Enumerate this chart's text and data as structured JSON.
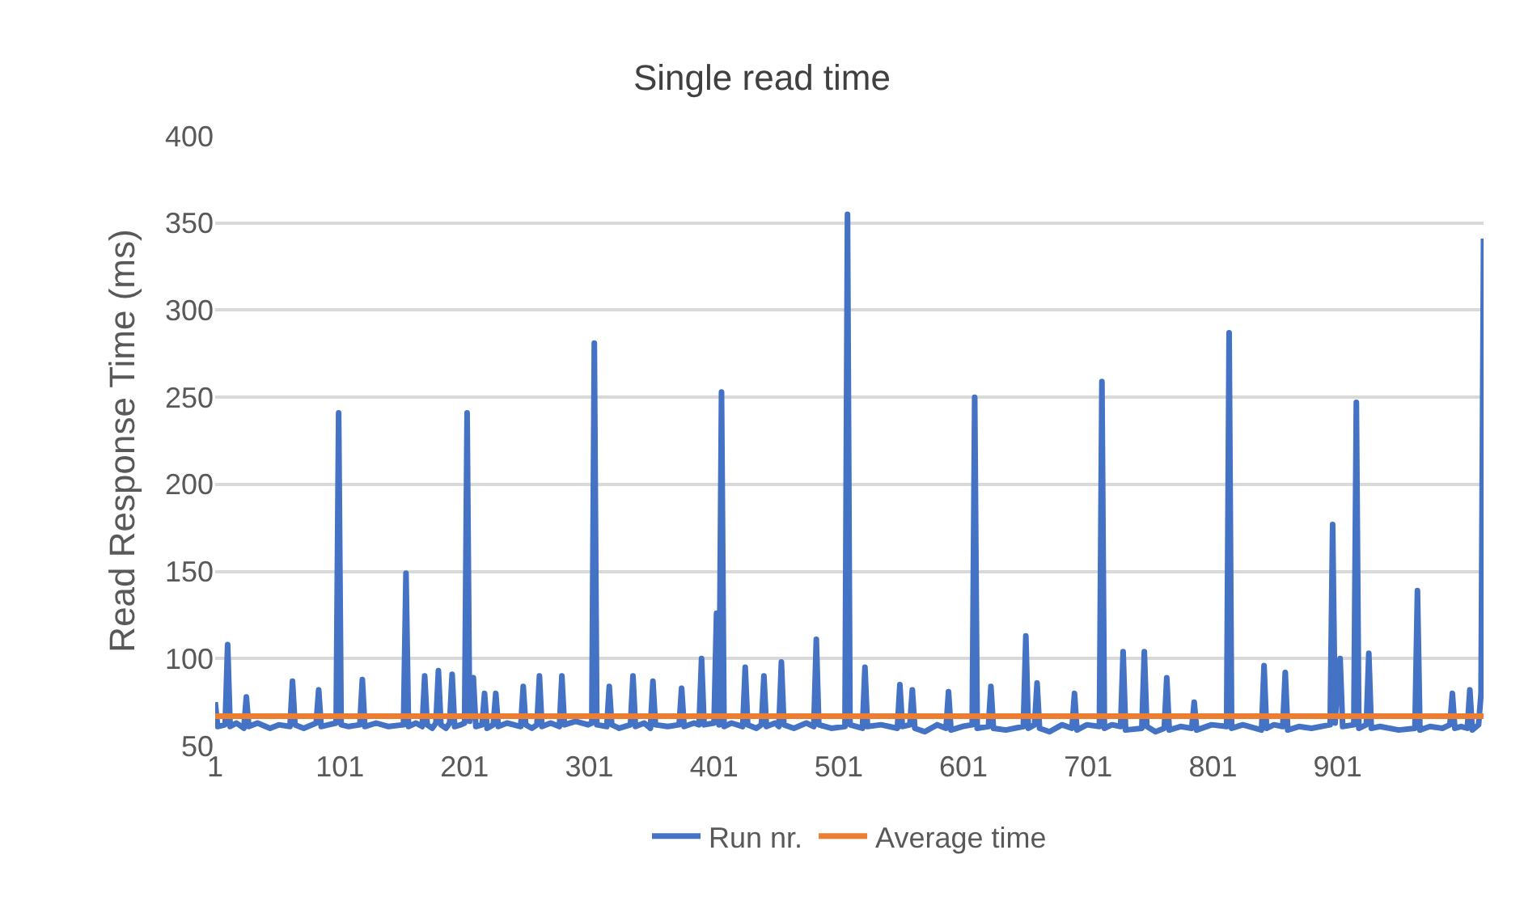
{
  "chart_data": {
    "type": "line",
    "title": "Single read time",
    "ylabel": "Read Response Time (ms)",
    "xlim": [
      1,
      1018
    ],
    "xticks": [
      1,
      101,
      201,
      301,
      401,
      501,
      601,
      701,
      801,
      901
    ],
    "ylim": [
      50,
      400
    ],
    "yticks": [
      50,
      100,
      150,
      200,
      250,
      300,
      350,
      400
    ],
    "grid": "y",
    "legend": "bottom",
    "marker": "none",
    "line_style": "solid",
    "series": [
      {
        "name": "Run nr.",
        "color": "#4472c4",
        "x": [
          1,
          3,
          9,
          11,
          13,
          18,
          24,
          26,
          28,
          35,
          45,
          52,
          61,
          63,
          65,
          72,
          82,
          84,
          86,
          92,
          98,
          100,
          102,
          108,
          117,
          119,
          121,
          130,
          140,
          152,
          154,
          156,
          162,
          167,
          169,
          171,
          175,
          178,
          180,
          182,
          186,
          189,
          191,
          193,
          198,
          201,
          203,
          205,
          208,
          210,
          215,
          217,
          219,
          224,
          226,
          228,
          235,
          246,
          248,
          250,
          255,
          259,
          261,
          263,
          270,
          277,
          279,
          281,
          290,
          300,
          303,
          305,
          307,
          315,
          317,
          319,
          325,
          334,
          336,
          338,
          345,
          350,
          352,
          354,
          364,
          373,
          375,
          377,
          385,
          389,
          391,
          393,
          401,
          403,
          405,
          407,
          409,
          415,
          424,
          426,
          428,
          435,
          439,
          441,
          443,
          450,
          453,
          455,
          457,
          465,
          475,
          481,
          483,
          485,
          495,
          506,
          508,
          510,
          520,
          522,
          524,
          535,
          548,
          550,
          552,
          558,
          560,
          562,
          570,
          580,
          587,
          589,
          591,
          600,
          608,
          610,
          612,
          621,
          623,
          625,
          635,
          649,
          651,
          653,
          658,
          660,
          662,
          670,
          680,
          688,
          690,
          692,
          700,
          710,
          712,
          714,
          720,
          727,
          729,
          731,
          744,
          746,
          748,
          755,
          762,
          764,
          766,
          775,
          784,
          786,
          788,
          800,
          812,
          814,
          816,
          825,
          840,
          842,
          844,
          850,
          857,
          859,
          861,
          870,
          880,
          895,
          897,
          899,
          901,
          903,
          905,
          914,
          916,
          918,
          924,
          926,
          928,
          935,
          950,
          963,
          965,
          967,
          975,
          985,
          991,
          993,
          995,
          1000,
          1005,
          1007,
          1009,
          1014,
          1016,
          1018
        ],
        "values": [
          75,
          61,
          62,
          108,
          61,
          63,
          60,
          78,
          61,
          63,
          60,
          62,
          61,
          87,
          62,
          60,
          63,
          82,
          61,
          62,
          63,
          241,
          62,
          61,
          62,
          88,
          61,
          63,
          61,
          62,
          149,
          61,
          63,
          61,
          90,
          62,
          60,
          63,
          93,
          62,
          60,
          63,
          91,
          61,
          62,
          63,
          241,
          64,
          89,
          61,
          62,
          80,
          60,
          62,
          80,
          61,
          63,
          61,
          84,
          62,
          60,
          62,
          90,
          61,
          63,
          61,
          90,
          62,
          64,
          62,
          63,
          281,
          62,
          61,
          84,
          62,
          60,
          62,
          90,
          61,
          63,
          60,
          87,
          62,
          61,
          62,
          83,
          61,
          63,
          62,
          100,
          62,
          63,
          126,
          62,
          253,
          61,
          63,
          61,
          95,
          62,
          60,
          62,
          90,
          61,
          63,
          61,
          98,
          62,
          60,
          63,
          61,
          111,
          62,
          60,
          61,
          355,
          62,
          60,
          95,
          61,
          62,
          60,
          85,
          61,
          62,
          82,
          60,
          58,
          62,
          60,
          81,
          59,
          61,
          62,
          250,
          60,
          61,
          84,
          60,
          59,
          61,
          113,
          60,
          62,
          86,
          60,
          58,
          62,
          60,
          80,
          59,
          62,
          61,
          259,
          60,
          62,
          61,
          104,
          59,
          60,
          104,
          61,
          58,
          60,
          89,
          59,
          61,
          60,
          75,
          59,
          62,
          61,
          287,
          60,
          62,
          59,
          96,
          60,
          62,
          61,
          92,
          59,
          61,
          60,
          62,
          177,
          63,
          88,
          100,
          61,
          62,
          247,
          60,
          62,
          103,
          60,
          61,
          59,
          60,
          139,
          59,
          61,
          60,
          62,
          80,
          60,
          61,
          60,
          82,
          59,
          62,
          80,
          341
        ]
      },
      {
        "name": "Average time",
        "color": "#ed7d31",
        "x": [
          1,
          1018
        ],
        "values": [
          67,
          67
        ]
      }
    ]
  }
}
